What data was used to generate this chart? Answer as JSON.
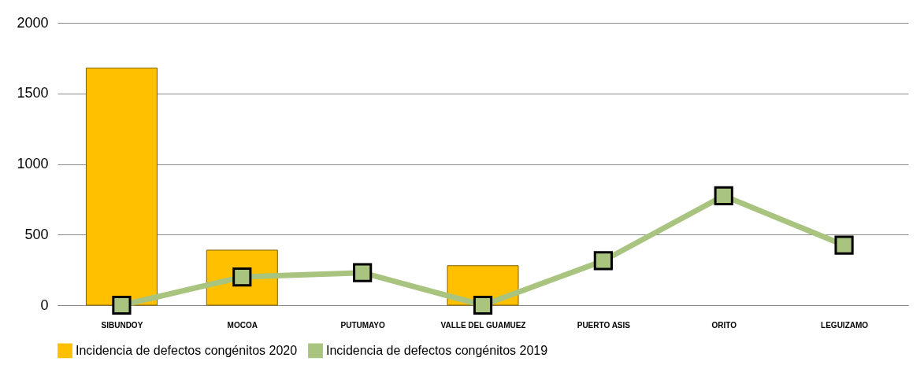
{
  "chart_data": {
    "type": "bar",
    "categories": [
      "SIBUNDOY",
      "MOCOA",
      "PUTUMAYO",
      "VALLE DEL GUAMUEZ",
      "PUERTO ASIS",
      "ORITO",
      "LEGUIZAMO"
    ],
    "series": [
      {
        "name": "Incidencia de defectos congénitos 2020",
        "color": "#ffc000",
        "values": [
          1680,
          390,
          null,
          280,
          null,
          null,
          null
        ]
      },
      {
        "name": "Incidencia de defectos congénitos 2019",
        "type": "line",
        "color": "#a9c47f",
        "marker": "square",
        "values": [
          0,
          200,
          230,
          0,
          315,
          775,
          425
        ]
      }
    ],
    "ylim": [
      0,
      2000
    ],
    "yticks": [
      0,
      500,
      1000,
      1500,
      2000
    ],
    "grid": "y",
    "legend": "bottom"
  }
}
